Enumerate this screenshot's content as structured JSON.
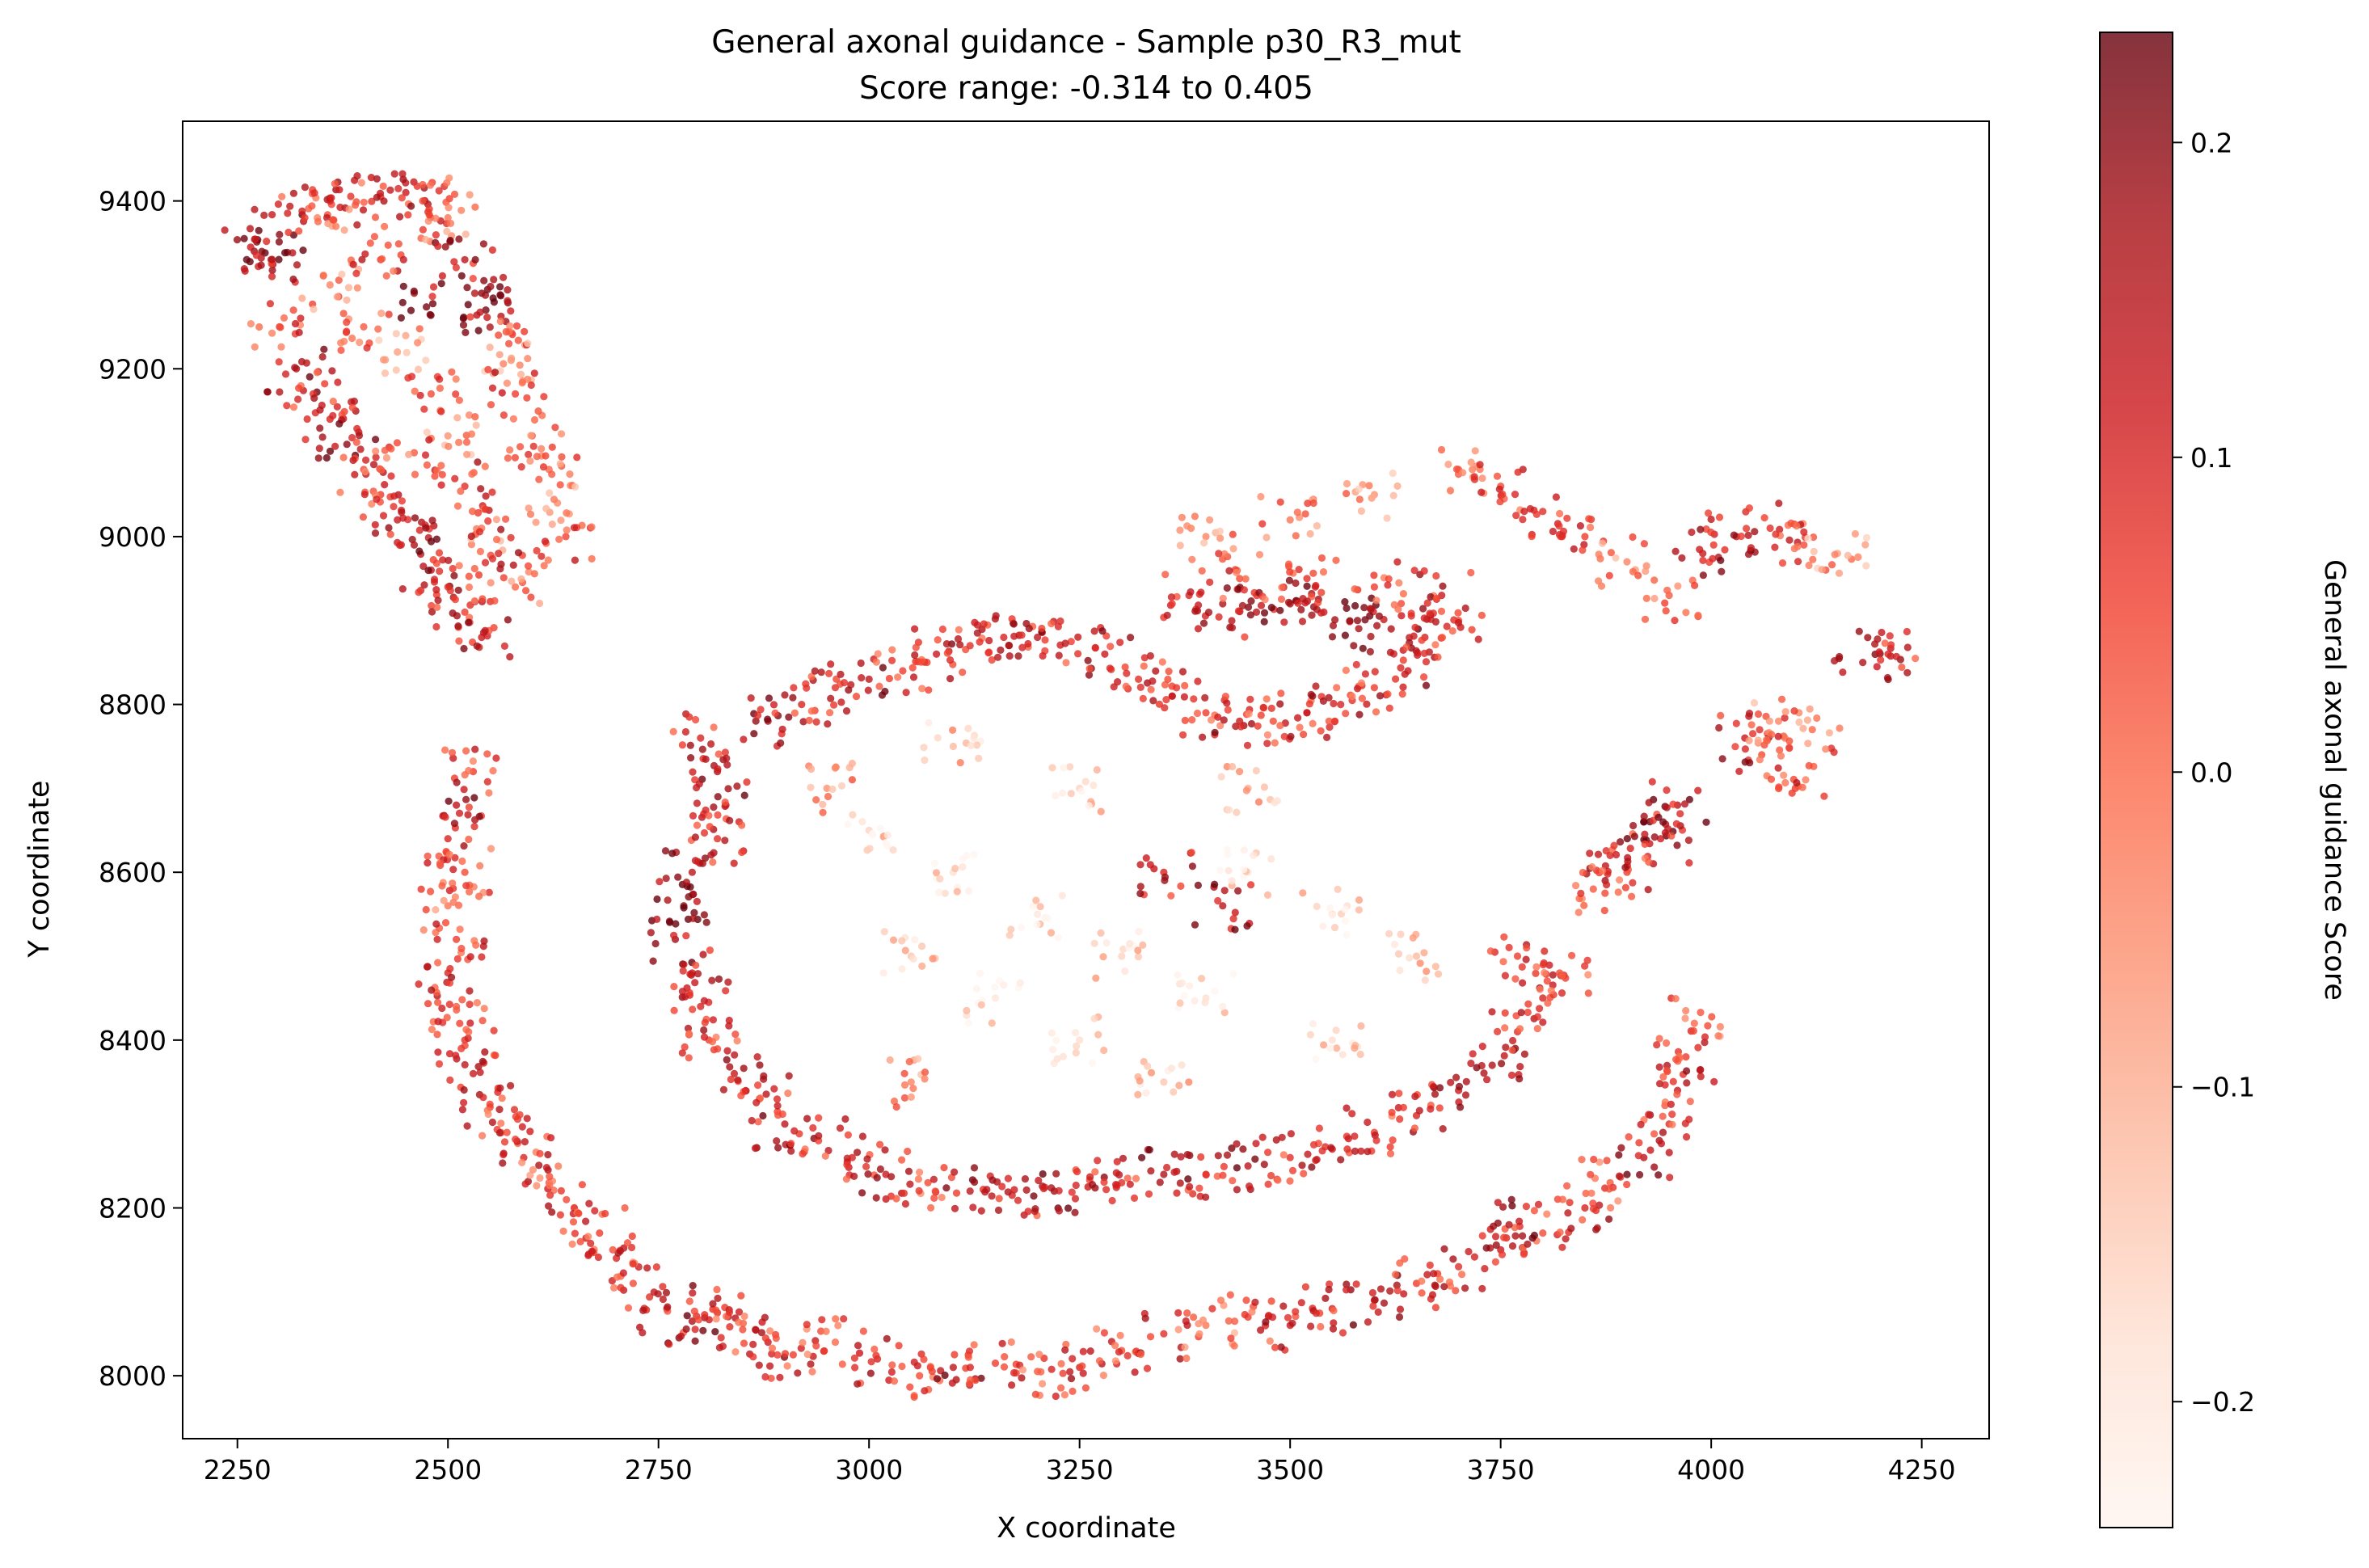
{
  "chart_data": {
    "type": "scatter",
    "title": "General axonal guidance - Sample p30_R3_mut",
    "subtitle": "Score range: -0.314 to 0.405",
    "xlabel": "X coordinate",
    "ylabel": "Y coordinate",
    "xlim": [
      2185,
      4330
    ],
    "ylim": [
      7925,
      9495
    ],
    "x_ticks": [
      2250,
      2500,
      2750,
      3000,
      3250,
      3500,
      3750,
      4000,
      4250
    ],
    "y_ticks": [
      8000,
      8200,
      8400,
      8600,
      8800,
      9000,
      9200,
      9400
    ],
    "grid": false,
    "legend": "none",
    "colorbar": {
      "label": "General axonal guidance Score",
      "range": [
        -0.24,
        0.235
      ],
      "ticks": [
        -0.2,
        -0.1,
        0.0,
        0.1,
        0.2
      ],
      "tick_labels": [
        "−0.2",
        "−0.1",
        "0.0",
        "0.1",
        "0.2"
      ],
      "colormap": "Reds",
      "colors": [
        "#fff5f0",
        "#fee0d2",
        "#fcbba1",
        "#fc9272",
        "#fb6a4a",
        "#ef3b2c",
        "#cb181d",
        "#a50f15",
        "#67000d"
      ],
      "alpha": 0.8
    },
    "point_count_estimate": 3400,
    "series": [
      {
        "points": [
          [
            2270,
            9340,
            0.18
          ],
          [
            2290,
            9330,
            0.12
          ],
          [
            2300,
            9360,
            0.2
          ],
          [
            2330,
            9380,
            0.06
          ],
          [
            2360,
            9400,
            0.1
          ],
          [
            2390,
            9395,
            0.02
          ],
          [
            2420,
            9405,
            0.08
          ],
          [
            2450,
            9410,
            0.12
          ],
          [
            2470,
            9400,
            0.04
          ],
          [
            2500,
            9380,
            -0.02
          ],
          [
            2520,
            9330,
            0.14
          ],
          [
            2540,
            9290,
            0.2
          ],
          [
            2545,
            9270,
            0.22
          ],
          [
            2560,
            9240,
            0.04
          ],
          [
            2575,
            9210,
            -0.06
          ],
          [
            2580,
            9170,
            0.06
          ],
          [
            2600,
            9120,
            0.02
          ],
          [
            2620,
            9080,
            0.0
          ],
          [
            2630,
            9040,
            -0.05
          ],
          [
            2640,
            9000,
            0.05
          ],
          [
            2300,
            9250,
            0.06
          ],
          [
            2320,
            9200,
            0.16
          ],
          [
            2340,
            9170,
            0.08
          ],
          [
            2360,
            9140,
            0.1
          ],
          [
            2380,
            9110,
            0.2
          ],
          [
            2400,
            9080,
            0.04
          ],
          [
            2420,
            9050,
            0.06
          ],
          [
            2440,
            9020,
            0.12
          ],
          [
            2460,
            8990,
            0.16
          ],
          [
            2480,
            8960,
            0.14
          ],
          [
            2500,
            8940,
            0.08
          ],
          [
            2520,
            8910,
            0.06
          ],
          [
            2540,
            8880,
            0.12
          ],
          [
            2360,
            9300,
            -0.04
          ],
          [
            2400,
            9250,
            0.02
          ],
          [
            2440,
            9220,
            -0.08
          ],
          [
            2460,
            9290,
            0.18
          ],
          [
            2420,
            9330,
            0.06
          ],
          [
            2480,
            9170,
            0.04
          ],
          [
            2500,
            9120,
            -0.06
          ],
          [
            2460,
            9100,
            0.02
          ],
          [
            2520,
            9060,
            0.08
          ],
          [
            2540,
            9010,
            -0.02
          ],
          [
            2560,
            8980,
            0.1
          ],
          [
            2580,
            8940,
            0.0
          ],
          [
            2530,
            8720,
            0.06
          ],
          [
            2510,
            8680,
            0.14
          ],
          [
            2500,
            8640,
            0.1
          ],
          [
            2520,
            8600,
            0.04
          ],
          [
            2500,
            8560,
            -0.02
          ],
          [
            2510,
            8520,
            0.06
          ],
          [
            2500,
            8480,
            0.1
          ],
          [
            2510,
            8440,
            0.02
          ],
          [
            2520,
            8400,
            0.08
          ],
          [
            2530,
            8360,
            0.12
          ],
          [
            2550,
            8320,
            0.06
          ],
          [
            2570,
            8290,
            0.04
          ],
          [
            2590,
            8260,
            0.1
          ],
          [
            2620,
            8230,
            0.02
          ],
          [
            2650,
            8200,
            0.08
          ],
          [
            2680,
            8170,
            0.06
          ],
          [
            2700,
            8140,
            0.1
          ],
          [
            2720,
            8110,
            0.04
          ],
          [
            2760,
            8080,
            0.12
          ],
          [
            2790,
            8065,
            0.16
          ],
          [
            2820,
            8075,
            0.08
          ],
          [
            2850,
            8055,
            0.04
          ],
          [
            2880,
            8040,
            0.12
          ],
          [
            2910,
            8025,
            0.06
          ],
          [
            2960,
            8040,
            0.0
          ],
          [
            3010,
            8020,
            0.1
          ],
          [
            3060,
            8000,
            0.04
          ],
          [
            3100,
            8010,
            0.14
          ],
          [
            3150,
            8015,
            0.06
          ],
          [
            3200,
            8005,
            0.02
          ],
          [
            3250,
            8010,
            0.1
          ],
          [
            3300,
            8030,
            0.04
          ],
          [
            3350,
            8050,
            0.08
          ],
          [
            3400,
            8060,
            -0.02
          ],
          [
            3450,
            8070,
            0.06
          ],
          [
            3500,
            8060,
            0.12
          ],
          [
            3550,
            8080,
            0.1
          ],
          [
            3600,
            8090,
            0.14
          ],
          [
            3650,
            8110,
            0.06
          ],
          [
            3700,
            8130,
            0.08
          ],
          [
            3750,
            8150,
            0.12
          ],
          [
            3800,
            8170,
            0.04
          ],
          [
            3850,
            8200,
            0.1
          ],
          [
            3880,
            8230,
            0.02
          ],
          [
            3920,
            8260,
            0.14
          ],
          [
            3950,
            8300,
            0.08
          ],
          [
            3960,
            8340,
            0.12
          ],
          [
            3970,
            8380,
            0.06
          ],
          [
            3980,
            8420,
            0.0
          ],
          [
            3760,
            8180,
            0.16
          ],
          [
            2800,
            8760,
            0.1
          ],
          [
            2820,
            8720,
            0.16
          ],
          [
            2830,
            8680,
            0.12
          ],
          [
            2820,
            8640,
            0.08
          ],
          [
            2790,
            8600,
            0.14
          ],
          [
            2780,
            8560,
            0.2
          ],
          [
            2770,
            8520,
            0.18
          ],
          [
            2790,
            8480,
            0.12
          ],
          [
            2800,
            8440,
            0.1
          ],
          [
            2810,
            8400,
            0.06
          ],
          [
            2840,
            8360,
            0.12
          ],
          [
            2870,
            8330,
            0.08
          ],
          [
            2900,
            8300,
            0.14
          ],
          [
            2940,
            8280,
            0.06
          ],
          [
            2980,
            8260,
            0.1
          ],
          [
            3020,
            8240,
            0.12
          ],
          [
            3070,
            8230,
            0.04
          ],
          [
            3120,
            8220,
            0.14
          ],
          [
            3170,
            8215,
            0.1
          ],
          [
            3220,
            8220,
            0.18
          ],
          [
            3260,
            8225,
            0.12
          ],
          [
            3300,
            8230,
            0.08
          ],
          [
            3350,
            8240,
            0.16
          ],
          [
            3400,
            8240,
            0.1
          ],
          [
            3450,
            8250,
            0.14
          ],
          [
            3500,
            8260,
            0.08
          ],
          [
            3550,
            8270,
            0.12
          ],
          [
            3600,
            8290,
            0.06
          ],
          [
            3650,
            8310,
            0.1
          ],
          [
            3700,
            8340,
            0.12
          ],
          [
            3740,
            8370,
            0.16
          ],
          [
            3770,
            8410,
            0.08
          ],
          [
            3800,
            8450,
            0.1
          ],
          [
            3820,
            8480,
            0.04
          ],
          [
            3770,
            8500,
            0.06
          ],
          [
            2880,
            8780,
            0.16
          ],
          [
            2920,
            8800,
            0.1
          ],
          [
            2960,
            8820,
            0.08
          ],
          [
            3000,
            8830,
            0.14
          ],
          [
            3040,
            8840,
            0.06
          ],
          [
            3080,
            8860,
            0.12
          ],
          [
            3120,
            8870,
            0.08
          ],
          [
            3160,
            8880,
            0.1
          ],
          [
            3200,
            8880,
            0.14
          ],
          [
            3240,
            8875,
            0.06
          ],
          [
            3280,
            8860,
            0.12
          ],
          [
            3320,
            8830,
            0.08
          ],
          [
            3360,
            8810,
            0.1
          ],
          [
            3400,
            8790,
            0.06
          ],
          [
            3440,
            8780,
            0.12
          ],
          [
            3480,
            8780,
            0.04
          ],
          [
            3520,
            8790,
            0.08
          ],
          [
            3560,
            8800,
            0.1
          ],
          [
            3600,
            8820,
            0.06
          ],
          [
            3640,
            8840,
            0.12
          ],
          [
            3380,
            8930,
            0.1
          ],
          [
            3420,
            8920,
            0.16
          ],
          [
            3460,
            8910,
            0.14
          ],
          [
            3500,
            8920,
            0.18
          ],
          [
            3540,
            8910,
            0.12
          ],
          [
            3580,
            8900,
            0.2
          ],
          [
            3620,
            8890,
            0.16
          ],
          [
            3660,
            8880,
            0.1
          ],
          [
            3700,
            8900,
            0.06
          ],
          [
            3440,
            8950,
            0.04
          ],
          [
            3520,
            8950,
            0.08
          ],
          [
            3600,
            8940,
            0.06
          ],
          [
            3680,
            8930,
            0.12
          ],
          [
            3400,
            9000,
            -0.04
          ],
          [
            3500,
            9020,
            -0.02
          ],
          [
            3600,
            9050,
            -0.06
          ],
          [
            3700,
            9080,
            0.02
          ],
          [
            3750,
            9060,
            0.04
          ],
          [
            3800,
            9030,
            0.08
          ],
          [
            3850,
            9000,
            0.06
          ],
          [
            3900,
            8970,
            -0.04
          ],
          [
            3950,
            8930,
            0.02
          ],
          [
            3990,
            8980,
            0.12
          ],
          [
            4030,
            9000,
            0.14
          ],
          [
            4070,
            9010,
            0.08
          ],
          [
            4110,
            8990,
            0.04
          ],
          [
            4150,
            8980,
            -0.08
          ],
          [
            4180,
            8850,
            0.16
          ],
          [
            4210,
            8860,
            0.1
          ],
          [
            3920,
            8660,
            0.2
          ],
          [
            3940,
            8640,
            0.12
          ],
          [
            3900,
            8600,
            0.06
          ],
          [
            3880,
            8620,
            0.1
          ],
          [
            3960,
            8680,
            0.14
          ],
          [
            3860,
            8580,
            0.02
          ],
          [
            4040,
            8760,
            0.12
          ],
          [
            4060,
            8740,
            0.04
          ],
          [
            4080,
            8780,
            -0.04
          ],
          [
            4100,
            8700,
            0.06
          ],
          [
            4120,
            8770,
            0.0
          ],
          [
            3000,
            8650,
            -0.16
          ],
          [
            3100,
            8600,
            -0.18
          ],
          [
            3200,
            8550,
            -0.2
          ],
          [
            3300,
            8500,
            -0.16
          ],
          [
            3400,
            8450,
            -0.18
          ],
          [
            3050,
            8500,
            -0.14
          ],
          [
            3150,
            8450,
            -0.2
          ],
          [
            3250,
            8400,
            -0.18
          ],
          [
            3350,
            8350,
            -0.14
          ],
          [
            3450,
            8600,
            -0.2
          ],
          [
            3550,
            8550,
            -0.16
          ],
          [
            3650,
            8500,
            -0.12
          ],
          [
            3550,
            8400,
            -0.18
          ],
          [
            3450,
            8700,
            -0.1
          ],
          [
            3250,
            8700,
            -0.16
          ],
          [
            3100,
            8750,
            -0.12
          ],
          [
            2950,
            8700,
            -0.06
          ],
          [
            3050,
            8350,
            -0.04
          ],
          [
            3350,
            8600,
            0.1
          ],
          [
            3420,
            8560,
            0.14
          ]
        ]
      }
    ]
  }
}
